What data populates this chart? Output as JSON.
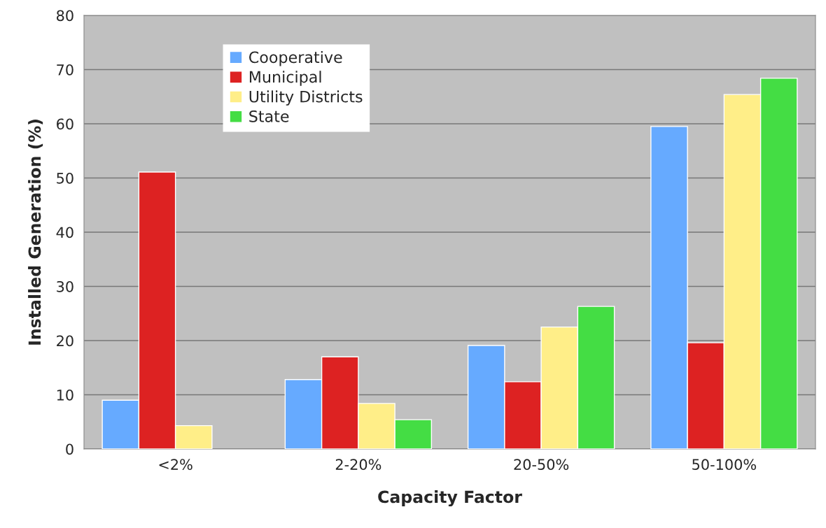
{
  "chart_data": {
    "type": "bar",
    "xlabel": "Capacity Factor",
    "ylabel": "Installed Generation (%)",
    "categories": [
      "<2%",
      "2-20%",
      "20-50%",
      "50-100%"
    ],
    "series": [
      {
        "name": "Cooperative",
        "color": "#66aaff",
        "values": [
          9.0,
          12.8,
          19.1,
          59.5
        ]
      },
      {
        "name": "Municipal",
        "color": "#dd2222",
        "values": [
          51.1,
          17.0,
          12.4,
          19.6
        ]
      },
      {
        "name": "Utility Districts",
        "color": "#ffee88",
        "values": [
          4.3,
          8.4,
          22.5,
          65.4
        ]
      },
      {
        "name": "State",
        "color": "#44dd44",
        "values": [
          null,
          5.4,
          26.3,
          68.4
        ]
      }
    ],
    "ylim": [
      0,
      80
    ],
    "yticks": [
      0,
      10,
      20,
      30,
      40,
      50,
      60,
      70,
      80
    ],
    "grid": "y",
    "legend": "top left"
  }
}
